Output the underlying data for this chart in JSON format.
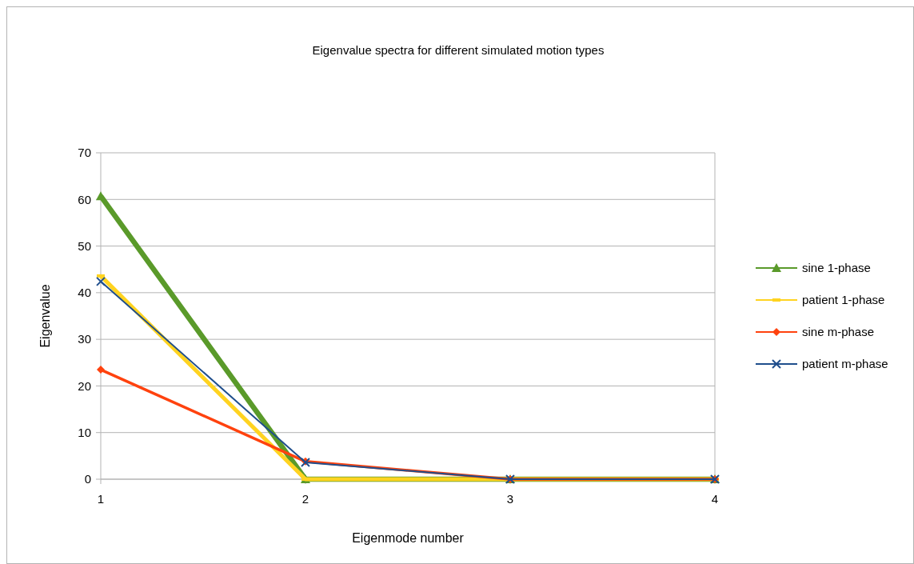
{
  "chart_data": {
    "type": "line",
    "title": "Eigenvalue spectra for different simulated motion types",
    "xlabel": "Eigenmode number",
    "ylabel": "Eigenvalue",
    "categories": [
      "1",
      "2",
      "3",
      "4"
    ],
    "ylim": [
      0,
      70
    ],
    "yticks": [
      0,
      10,
      20,
      30,
      40,
      50,
      60,
      70
    ],
    "grid": "y",
    "legend": "right",
    "series": [
      {
        "name": "sine 1-phase",
        "color": "#5a9a2a",
        "marker": "triangle",
        "values": [
          60.7,
          0,
          0,
          0
        ]
      },
      {
        "name": "patient 1-phase",
        "color": "#ffd320",
        "marker": "square",
        "values": [
          43.6,
          0,
          0,
          0
        ]
      },
      {
        "name": "sine m-phase",
        "color": "#ff420e",
        "marker": "diamond",
        "values": [
          23.5,
          3.8,
          0,
          0
        ]
      },
      {
        "name": "patient m-phase",
        "color": "#1f4e8c",
        "marker": "cross",
        "values": [
          42.4,
          3.6,
          0,
          0
        ]
      }
    ]
  }
}
